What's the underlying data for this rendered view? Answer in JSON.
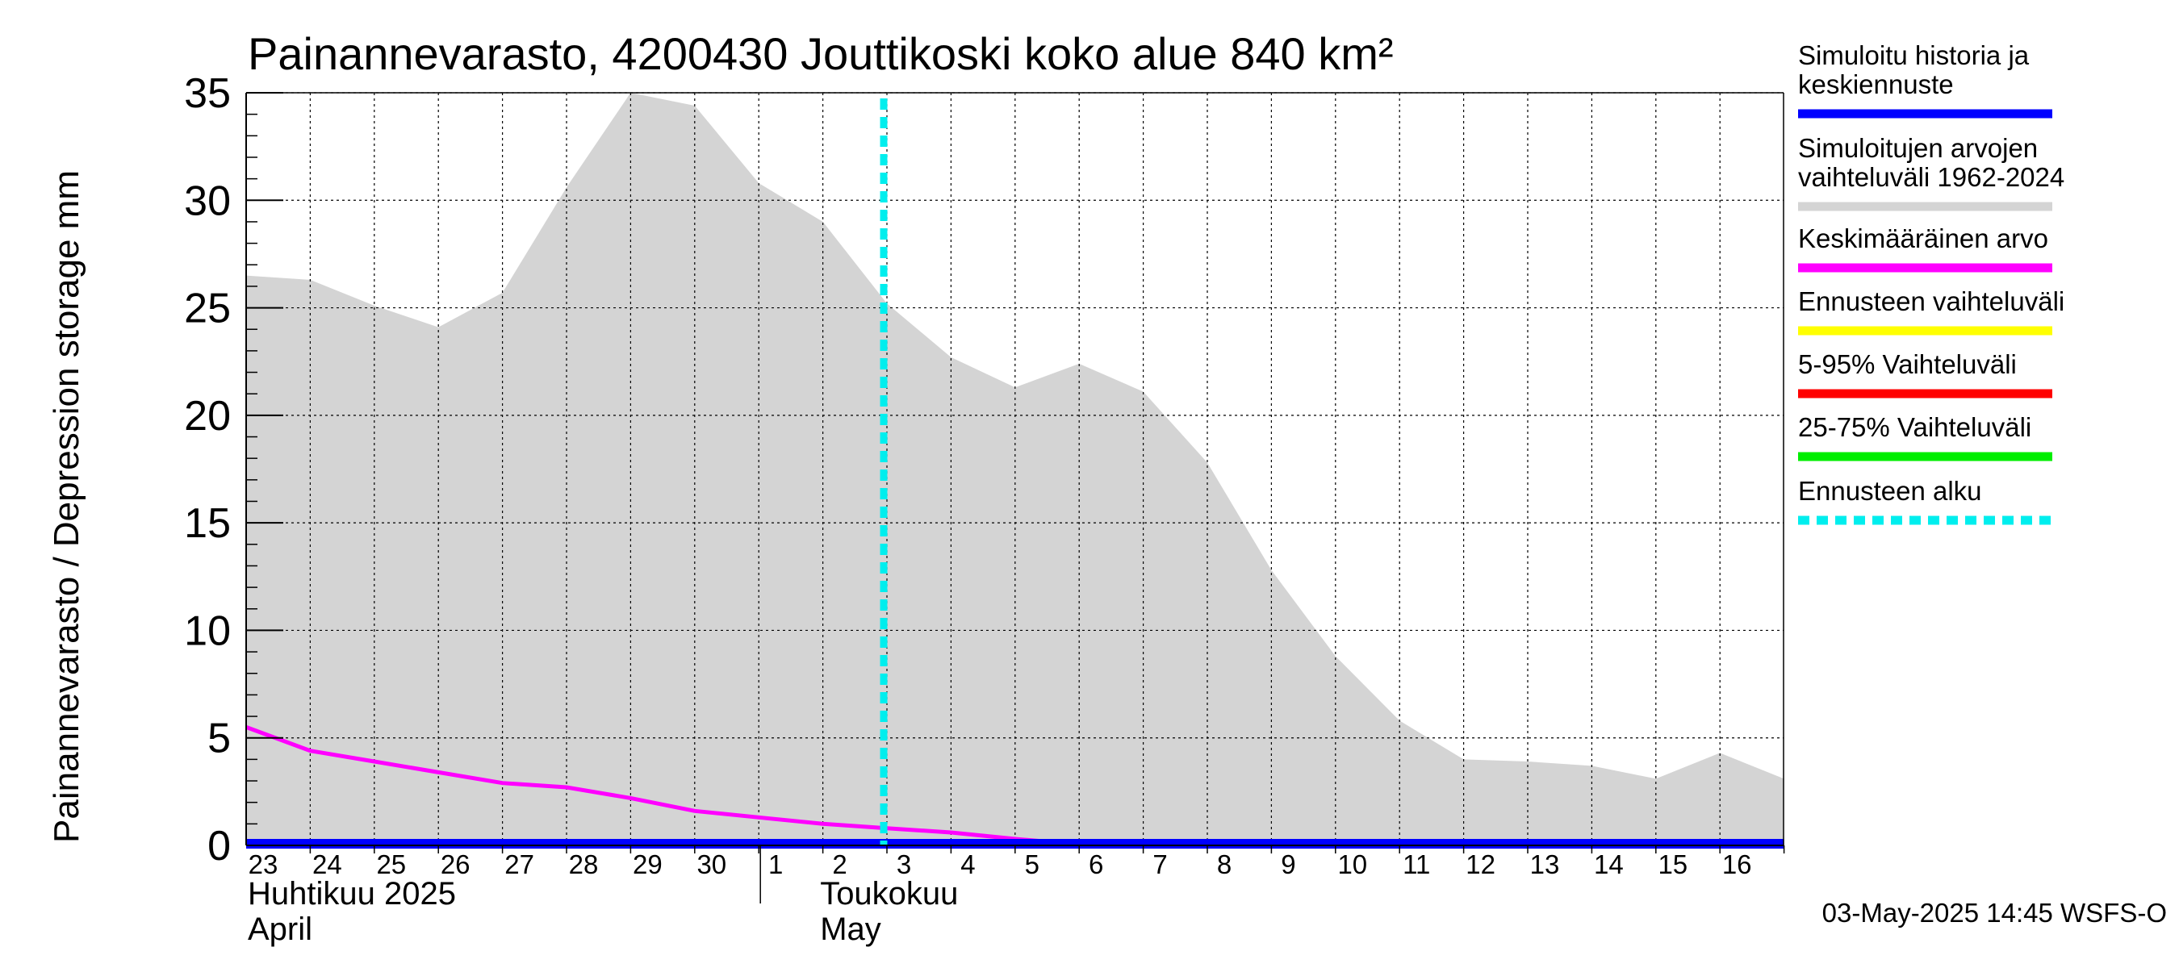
{
  "chart_data": {
    "type": "area",
    "title": "Painannevarasto, 4200430 Jouttikoski koko alue 840 km²",
    "ylabel": "Painannevarasto / Depression storage    mm",
    "ylim": [
      0,
      35
    ],
    "yticks": [
      0,
      5,
      10,
      15,
      20,
      25,
      30,
      35
    ],
    "grid": true,
    "x_day_labels": [
      "23",
      "24",
      "25",
      "26",
      "27",
      "28",
      "29",
      "30",
      "1",
      "2",
      "3",
      "4",
      "5",
      "6",
      "7",
      "8",
      "9",
      "10",
      "11",
      "12",
      "13",
      "14",
      "15",
      "16"
    ],
    "month_labels": [
      {
        "line1": "Huhtikuu  2025",
        "line2": "April"
      },
      {
        "line1": "Toukokuu",
        "line2": "May"
      }
    ],
    "forecast_start_index": 10,
    "series": [
      {
        "name": "Simuloitujen arvojen vaihteluväli 1962-2024",
        "kind": "band",
        "color": "#d4d4d4",
        "upper": [
          26.5,
          26.3,
          25.1,
          24.1,
          25.7,
          30.6,
          35.0,
          34.4,
          30.8,
          29.0,
          25.2,
          22.7,
          21.3,
          22.4,
          21.1,
          17.8,
          12.8,
          8.8,
          5.8,
          4.0,
          3.9,
          3.7,
          3.1,
          4.3,
          3.1
        ],
        "lower": [
          0,
          0,
          0,
          0,
          0,
          0,
          0,
          0,
          0,
          0,
          0,
          0,
          0,
          0,
          0,
          0,
          0,
          0,
          0,
          0,
          0,
          0,
          0,
          0,
          0
        ]
      },
      {
        "name": "Keskimääräinen arvo",
        "kind": "line",
        "color": "#ff00ff",
        "values": [
          5.5,
          4.4,
          3.9,
          3.4,
          2.9,
          2.7,
          2.2,
          1.6,
          1.3,
          1.0,
          0.8,
          0.6,
          0.3,
          0.05,
          0.0,
          0.0,
          0.0,
          0.0,
          0.0,
          0.0,
          0.0,
          0.0,
          0.0,
          0.0,
          0.0
        ]
      },
      {
        "name": "Simuloitu historia ja keskiennuste",
        "kind": "line",
        "color": "#0000ff",
        "values": [
          0,
          0,
          0,
          0,
          0,
          0,
          0,
          0,
          0,
          0,
          0,
          0,
          0,
          0,
          0,
          0,
          0,
          0,
          0,
          0,
          0,
          0,
          0,
          0,
          0
        ]
      }
    ],
    "legend": {
      "placement": "right",
      "entries": [
        {
          "label_lines": [
            "Simuloitu historia ja",
            "keskiennuste"
          ],
          "color": "#0000ff",
          "style": "solid"
        },
        {
          "label_lines": [
            "Simuloitujen arvojen",
            "vaihteluväli 1962-2024"
          ],
          "color": "#d4d4d4",
          "style": "solid"
        },
        {
          "label_lines": [
            "Keskimääräinen arvo"
          ],
          "color": "#ff00ff",
          "style": "solid"
        },
        {
          "label_lines": [
            "Ennusteen vaihteluväli"
          ],
          "color": "#ffff00",
          "style": "solid"
        },
        {
          "label_lines": [
            "5-95% Vaihteluväli"
          ],
          "color": "#ff0000",
          "style": "solid"
        },
        {
          "label_lines": [
            "25-75% Vaihteluväli"
          ],
          "color": "#00ee00",
          "style": "solid"
        },
        {
          "label_lines": [
            "Ennusteen alku"
          ],
          "color": "#00eeee",
          "style": "dashed"
        }
      ]
    },
    "footer": "03-May-2025 14:45 WSFS-O"
  }
}
